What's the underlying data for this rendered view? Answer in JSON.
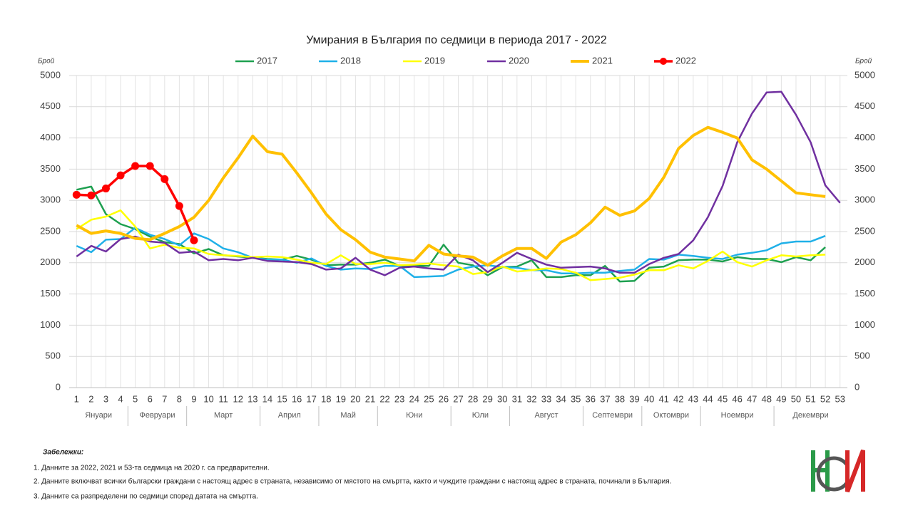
{
  "chart_data": {
    "type": "line",
    "title": "Умирания в България по седмици в периода 2017 - 2022",
    "y_label": "Брой",
    "y2_label": "Брой",
    "categories": [
      1,
      2,
      3,
      4,
      5,
      6,
      7,
      8,
      9,
      10,
      11,
      12,
      13,
      14,
      15,
      16,
      17,
      18,
      19,
      20,
      21,
      22,
      23,
      24,
      25,
      26,
      27,
      28,
      29,
      30,
      31,
      32,
      33,
      34,
      35,
      36,
      37,
      38,
      39,
      40,
      41,
      42,
      43,
      44,
      45,
      46,
      47,
      48,
      49,
      50,
      51,
      52,
      53
    ],
    "month_groups": [
      {
        "label": "Януари",
        "from": 1,
        "to": 4
      },
      {
        "label": "Февруари",
        "from": 5,
        "to": 8
      },
      {
        "label": "Март",
        "from": 9,
        "to": 13
      },
      {
        "label": "Април",
        "from": 14,
        "to": 17
      },
      {
        "label": "Май",
        "from": 18,
        "to": 21
      },
      {
        "label": "Юни",
        "from": 22,
        "to": 26
      },
      {
        "label": "Юли",
        "from": 27,
        "to": 30
      },
      {
        "label": "Август",
        "from": 31,
        "to": 35
      },
      {
        "label": "Септември",
        "from": 36,
        "to": 39
      },
      {
        "label": "Октомври",
        "from": 40,
        "to": 43
      },
      {
        "label": "Ноември",
        "from": 44,
        "to": 48
      },
      {
        "label": "Декември",
        "from": 49,
        "to": 53
      }
    ],
    "ylim": [
      0,
      5000
    ],
    "yticks": [
      0,
      500,
      1000,
      1500,
      2000,
      2500,
      3000,
      3500,
      4000,
      4500,
      5000
    ],
    "y2lim": [
      0,
      5000
    ],
    "y2ticks": [
      0,
      500,
      1000,
      1500,
      2000,
      2500,
      3000,
      3500,
      4000,
      4500,
      5000
    ],
    "grid": true,
    "legend": "top",
    "series": [
      {
        "name": "2017",
        "color": "#1ea050",
        "width": 2.5,
        "markers": false,
        "values": [
          3170,
          3220,
          2780,
          2620,
          2540,
          2420,
          2330,
          2300,
          2150,
          2220,
          2120,
          2100,
          2080,
          2060,
          2050,
          2110,
          2050,
          1960,
          1970,
          1970,
          2000,
          2050,
          1950,
          1950,
          1950,
          2290,
          2000,
          1960,
          1800,
          1930,
          1940,
          2040,
          1770,
          1770,
          1800,
          1800,
          1950,
          1700,
          1710,
          1920,
          1940,
          2040,
          2050,
          2050,
          2020,
          2090,
          2060,
          2060,
          2010,
          2090,
          2040,
          2250,
          null
        ]
      },
      {
        "name": "2018",
        "color": "#1fb0e8",
        "width": 2.5,
        "markers": false,
        "values": [
          2270,
          2170,
          2370,
          2380,
          2560,
          2450,
          2380,
          2280,
          2470,
          2380,
          2230,
          2170,
          2080,
          2050,
          2050,
          2000,
          2070,
          1950,
          1890,
          1910,
          1900,
          1950,
          1950,
          1770,
          1780,
          1790,
          1890,
          1940,
          1960,
          1930,
          1920,
          1880,
          1880,
          1830,
          1830,
          1840,
          1840,
          1870,
          1890,
          2060,
          2050,
          2130,
          2110,
          2080,
          2060,
          2130,
          2160,
          2200,
          2310,
          2340,
          2340,
          2430,
          null
        ]
      },
      {
        "name": "2019",
        "color": "#ffff00",
        "width": 2.5,
        "markers": false,
        "values": [
          2540,
          2690,
          2740,
          2840,
          2580,
          2230,
          2290,
          2240,
          2230,
          2140,
          2120,
          2110,
          2090,
          2100,
          2090,
          2050,
          2000,
          1980,
          2120,
          1980,
          1980,
          2000,
          1960,
          1970,
          1990,
          1960,
          1940,
          1820,
          1850,
          1940,
          1860,
          1880,
          1910,
          1900,
          1840,
          1720,
          1740,
          1760,
          1810,
          1880,
          1880,
          1960,
          1910,
          2030,
          2180,
          2010,
          1940,
          2040,
          2120,
          2100,
          2120,
          2130,
          null
        ]
      },
      {
        "name": "2020",
        "color": "#7030a0",
        "width": 2.5,
        "markers": false,
        "values": [
          2100,
          2270,
          2180,
          2380,
          2420,
          2340,
          2320,
          2160,
          2180,
          2040,
          2060,
          2040,
          2080,
          2030,
          2020,
          2010,
          1980,
          1890,
          1910,
          2080,
          1890,
          1800,
          1920,
          1940,
          1910,
          1890,
          2130,
          2040,
          1850,
          2000,
          2160,
          2060,
          1970,
          1920,
          1930,
          1940,
          1910,
          1840,
          1840,
          1980,
          2080,
          2140,
          2360,
          2730,
          3230,
          3930,
          4390,
          4730,
          4740,
          4370,
          3930,
          3240,
          2960
        ]
      },
      {
        "name": "2021",
        "color": "#ffc000",
        "width": 4,
        "markers": false,
        "values": [
          2600,
          2470,
          2510,
          2470,
          2390,
          2370,
          2470,
          2580,
          2730,
          3000,
          3360,
          3680,
          4030,
          3780,
          3740,
          3440,
          3120,
          2780,
          2530,
          2370,
          2170,
          2090,
          2060,
          2030,
          2280,
          2140,
          2110,
          2090,
          1960,
          2110,
          2230,
          2230,
          2070,
          2330,
          2450,
          2640,
          2890,
          2760,
          2830,
          3030,
          3370,
          3830,
          4040,
          4170,
          4090,
          4000,
          3650,
          3500,
          3310,
          3120,
          3090,
          3060,
          null
        ]
      },
      {
        "name": "2022",
        "color": "#ff0000",
        "width": 3.5,
        "markers": true,
        "values": [
          3090,
          3080,
          3190,
          3400,
          3550,
          3550,
          3340,
          2910,
          2360,
          null,
          null,
          null,
          null,
          null,
          null,
          null,
          null,
          null,
          null,
          null,
          null,
          null,
          null,
          null,
          null,
          null,
          null,
          null,
          null,
          null,
          null,
          null,
          null,
          null,
          null,
          null,
          null,
          null,
          null,
          null,
          null,
          null,
          null,
          null,
          null,
          null,
          null,
          null,
          null,
          null,
          null,
          null,
          null
        ]
      }
    ]
  },
  "notes": {
    "heading": "Забележки:",
    "items": [
      "1. Данните за 2022, 2021 и 53-та седмица на 2020 г. са предварителни.",
      "2. Данните включват всички български граждани с настоящ адрес в страната, независимо от мястото на смъртта, както и чуждите граждани с настоящ адрес в страната, починали в България.",
      "3. Данните са разпределени по седмици според датата на смъртта."
    ]
  }
}
